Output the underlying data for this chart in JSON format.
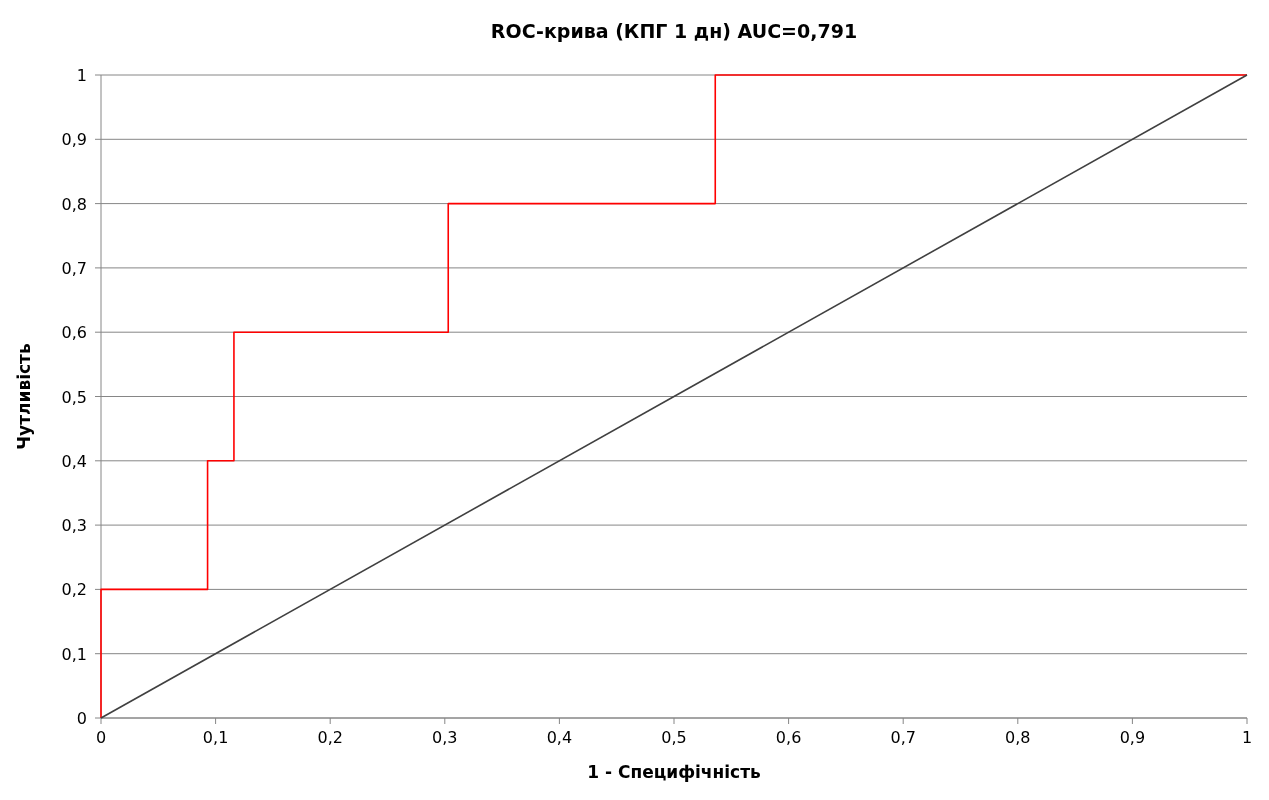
{
  "chart_data": {
    "type": "line",
    "title": "ROC-крива (КПГ 1 дн) AUC=0,791",
    "xlabel": "1 - Специфічність",
    "ylabel": "Чутливість",
    "series": [
      {
        "color": "#ff0000",
        "x": [
          0,
          0,
          0.093,
          0.093,
          0.116,
          0.116,
          0.303,
          0.303,
          0.536,
          0.536,
          1
        ],
        "values": [
          0,
          0.2,
          0.2,
          0.4,
          0.4,
          0.6,
          0.6,
          0.8,
          0.8,
          1,
          1
        ]
      },
      {
        "color": "#404040",
        "x": [
          0,
          1
        ],
        "values": [
          0,
          1
        ]
      }
    ],
    "xlim": [
      0,
      1
    ],
    "ylim": [
      0,
      1
    ],
    "xticks": [
      0,
      {
        "value": 0.1,
        "label": "0,1"
      },
      {
        "value": 0.2,
        "label": "0,2"
      },
      {
        "value": 0.3,
        "label": "0,3"
      },
      {
        "value": 0.4,
        "label": "0,4"
      },
      {
        "value": 0.5,
        "label": "0,5"
      },
      {
        "value": 0.6,
        "label": "0,6"
      },
      {
        "value": 0.7,
        "label": "0,7"
      },
      {
        "value": 0.8,
        "label": "0,8"
      },
      {
        "value": 0.9,
        "label": "0,9"
      },
      1
    ],
    "yticks": [
      0,
      {
        "value": 0.1,
        "label": "0,1"
      },
      {
        "value": 0.2,
        "label": "0,2"
      },
      {
        "value": 0.3,
        "label": "0,3"
      },
      {
        "value": 0.4,
        "label": "0,4"
      },
      {
        "value": 0.5,
        "label": "0,5"
      },
      {
        "value": 0.6,
        "label": "0,6"
      },
      {
        "value": 0.7,
        "label": "0,7"
      },
      {
        "value": 0.8,
        "label": "0,8"
      },
      {
        "value": 0.9,
        "label": "0,9"
      },
      1
    ],
    "grid": "y",
    "marker": "none",
    "line_style": "solid"
  }
}
